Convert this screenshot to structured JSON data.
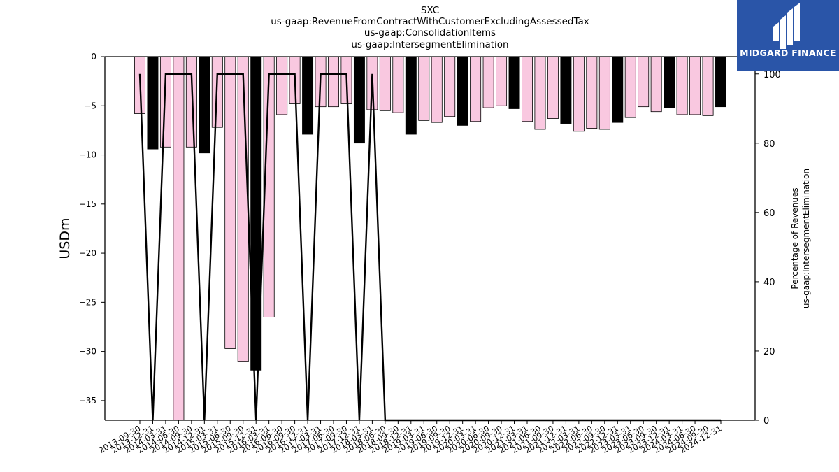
{
  "title": {
    "line1": "SXC",
    "line2": "us-gaap:RevenueFromContractWithCustomerExcludingAssessedTax",
    "line3": "us-gaap:ConsolidationItems",
    "line4": "us-gaap:IntersegmentElimination"
  },
  "logo": {
    "text": "MIDGARD FINANCE",
    "icon": "midgard-logo-icon"
  },
  "colors": {
    "bar_quarter": "#f9c8e0",
    "bar_fy": "#000000",
    "line": "#000000",
    "logo_bg": "#2a55a8"
  },
  "chart_data": {
    "type": "bar",
    "ylabel": "USDm",
    "y2label": [
      "Percentage of Revenues",
      "us-gaap:IntersegmentElimination"
    ],
    "ylim": [
      -37,
      0
    ],
    "y2lim": [
      0,
      105
    ],
    "yticks": [
      0,
      -5,
      -10,
      -15,
      -20,
      -25,
      -30,
      -35
    ],
    "y2ticks": [
      0,
      20,
      40,
      60,
      80,
      100
    ],
    "categories": [
      "2013-09-30",
      "2013-12-31",
      "2014-03-31",
      "2014-06-30",
      "2014-09-30",
      "2014-12-31",
      "2015-03-31",
      "2015-06-30",
      "2015-09-30",
      "2015-12-31",
      "2016-03-31",
      "2016-06-30",
      "2016-09-30",
      "2016-12-31",
      "2017-03-31",
      "2017-06-30",
      "2017-09-30",
      "2017-12-31",
      "2018-03-31",
      "2018-06-30",
      "2018-09-30",
      "2018-12-31",
      "2019-03-31",
      "2019-06-30",
      "2019-09-30",
      "2019-12-31",
      "2020-03-31",
      "2020-06-30",
      "2020-09-30",
      "2020-12-31",
      "2021-03-31",
      "2021-06-30",
      "2021-09-30",
      "2021-12-31",
      "2022-03-31",
      "2022-06-30",
      "2022-09-30",
      "2022-12-31",
      "2023-03-31",
      "2023-06-30",
      "2023-09-30",
      "2023-12-31",
      "2024-03-31",
      "2024-06-30",
      "2024-09-30",
      "2024-12-31"
    ],
    "series": [
      {
        "values": [
          -5.8,
          -9.4,
          -9.2,
          -37,
          -9.2,
          -9.8,
          -7.2,
          -29.7,
          -31,
          -31.9,
          -26.5,
          -5.9,
          -4.8,
          -7.9,
          -5.1,
          -5.1,
          -4.8,
          -8.8,
          -5.4,
          -5.5,
          -5.7,
          -7.9,
          -6.5,
          -6.7,
          -6.1,
          -7.0,
          -6.6,
          -5.2,
          -5.0,
          -5.3,
          -6.6,
          -7.4,
          -6.3,
          -6.8,
          -7.6,
          -7.3,
          -7.4,
          -6.7,
          -6.2,
          -5.1,
          -5.6,
          -5.2,
          -5.9,
          -5.9,
          -6.0,
          -5.1
        ]
      },
      {
        "values": [
          100,
          0,
          100,
          100,
          100,
          0,
          100,
          100,
          100,
          0,
          100,
          100,
          100,
          0,
          100,
          100,
          100,
          0,
          100,
          0,
          0,
          0,
          0,
          0,
          0,
          0,
          0,
          0,
          0,
          0,
          0,
          0,
          0,
          0,
          0,
          0,
          0,
          0,
          0,
          0,
          0,
          0,
          0,
          0,
          0,
          0
        ]
      }
    ],
    "fy_bars": [
      1,
      5,
      9,
      13,
      17,
      21,
      25,
      29,
      33,
      37,
      41,
      45
    ]
  }
}
